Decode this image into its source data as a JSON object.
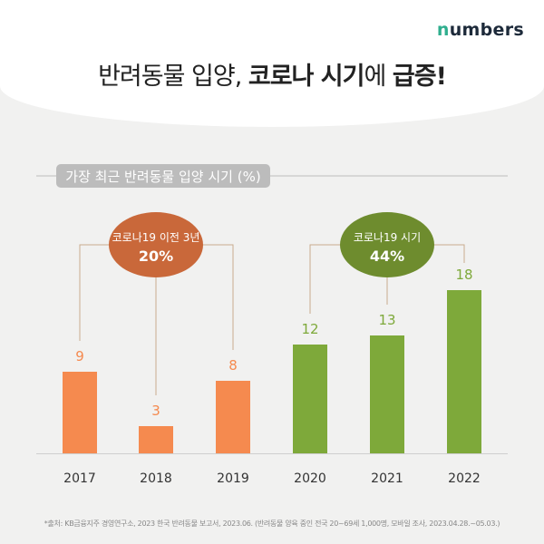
{
  "brand": {
    "logo_prefix": "n",
    "logo_rest": "umbers"
  },
  "title": {
    "part1": "반려동물 입양, ",
    "part2": "코로나 시기",
    "part3": "에 ",
    "part4": "급증!"
  },
  "chart_data": {
    "type": "bar",
    "title": "가장 최근 반려동물 입양 시기 (%)",
    "categories": [
      "2017",
      "2018",
      "2019",
      "2020",
      "2021",
      "2022"
    ],
    "values": [
      9,
      3,
      8,
      12,
      13,
      18
    ],
    "ylim": [
      0,
      18
    ],
    "grid": false,
    "colors": {
      "pre_covid": "#f58a4f",
      "covid": "#7ea93a"
    },
    "annotations": [
      {
        "label": "코로나19 이전 3년",
        "value": "20%",
        "color": "#c9683a",
        "group": [
          "2017",
          "2018",
          "2019"
        ]
      },
      {
        "label": "코로나19 시기",
        "value": "44%",
        "color": "#6e8c2e",
        "group": [
          "2020",
          "2021",
          "2022"
        ]
      }
    ]
  },
  "source": "*출처: KB금융지주 경영연구소, 2023 한국 반려동물 보고서, 2023.06. (반려동물 양육 중인 전국 20~69세 1,000명, 모바일 조사, 2023.04.28.~05.03.)"
}
